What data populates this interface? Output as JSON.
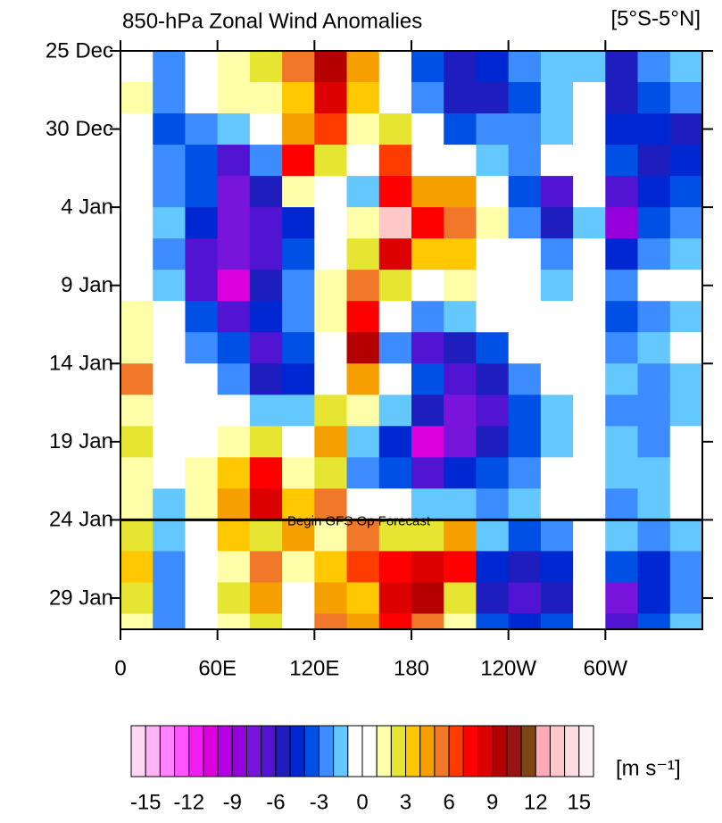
{
  "chart_data": {
    "type": "heatmap",
    "title": "850-hPa Zonal Wind Anomalies",
    "subtitle": "[5°S-5°N]",
    "x": [
      10,
      30,
      50,
      70,
      90,
      110,
      130,
      150,
      170,
      190,
      210,
      230,
      250,
      270,
      290,
      310,
      330,
      350
    ],
    "y": [
      1,
      3,
      5,
      7,
      9,
      11,
      13,
      15,
      17,
      19,
      21,
      23,
      25,
      27,
      29,
      31,
      33,
      35,
      37
    ],
    "z": [
      [
        1,
        -2,
        0,
        2,
        3,
        6,
        10,
        5,
        1,
        -3,
        -5,
        -4,
        -2,
        -1,
        -1,
        -5,
        -2,
        -1
      ],
      [
        2,
        -2,
        1,
        2,
        2,
        4,
        9,
        4,
        0,
        -2,
        -5,
        -5,
        -3,
        -1,
        0,
        -5,
        -3,
        -2
      ],
      [
        1,
        -3,
        -2,
        -1,
        0,
        5,
        7,
        2,
        3,
        0,
        -3,
        -2,
        -2,
        -1,
        0,
        -4,
        -4,
        -5
      ],
      [
        0,
        -2,
        -3,
        -6,
        -2,
        8,
        3,
        0,
        7,
        1,
        0,
        -1,
        -2,
        0,
        1,
        -3,
        -5,
        -4
      ],
      [
        0,
        -2,
        -3,
        -7,
        -5,
        2,
        0,
        -1,
        8,
        5,
        5,
        0,
        -3,
        -6,
        0,
        -6,
        -4,
        -3
      ],
      [
        1,
        -1,
        -4,
        -7,
        -6,
        -4,
        1,
        2,
        14,
        8,
        6,
        2,
        -2,
        -5,
        -1,
        -8,
        -3,
        -2
      ],
      [
        0,
        -2,
        -6,
        -7,
        -6,
        -3,
        1,
        3,
        9,
        4,
        4,
        1,
        0,
        -2,
        0,
        -4,
        -2,
        -1
      ],
      [
        1,
        -1,
        -6,
        -10,
        -5,
        -2,
        2,
        6,
        3,
        0,
        2,
        1,
        0,
        -1,
        0,
        -2,
        0,
        1
      ],
      [
        2,
        0,
        -3,
        -6,
        -4,
        -2,
        2,
        8,
        1,
        -2,
        -1,
        0,
        1,
        0,
        0,
        -3,
        -2,
        -1
      ],
      [
        2,
        0,
        -2,
        -3,
        -6,
        -3,
        1,
        10,
        -2,
        -6,
        -5,
        -3,
        0,
        1,
        0,
        -2,
        -1,
        0
      ],
      [
        6,
        1,
        0,
        -2,
        -5,
        -4,
        1,
        5,
        0,
        -3,
        -6,
        -5,
        -2,
        0,
        1,
        -1,
        -2,
        -1
      ],
      [
        2,
        0,
        1,
        0,
        -1,
        -1,
        3,
        2,
        -1,
        -5,
        -7,
        -6,
        -3,
        -1,
        0,
        -2,
        -2,
        -1
      ],
      [
        3,
        0,
        1,
        2,
        3,
        0,
        5,
        -1,
        -4,
        -10,
        -7,
        -5,
        -3,
        -1,
        0,
        -1,
        -2,
        0
      ],
      [
        2,
        1,
        2,
        4,
        8,
        2,
        3,
        -2,
        -3,
        -6,
        -4,
        -3,
        -2,
        0,
        1,
        -1,
        -1,
        1
      ],
      [
        2,
        -1,
        2,
        5,
        9,
        4,
        6,
        1,
        0,
        -1,
        -1,
        -2,
        -1,
        1,
        0,
        -2,
        -1,
        0
      ],
      [
        3,
        -1,
        1,
        4,
        3,
        5,
        2,
        6,
        3,
        3,
        5,
        -1,
        -3,
        -2,
        0,
        -1,
        -2,
        -1
      ],
      [
        4,
        -2,
        1,
        2,
        6,
        2,
        4,
        7,
        8,
        9,
        8,
        -4,
        -5,
        -4,
        0,
        -3,
        -4,
        -2
      ],
      [
        3,
        -2,
        0,
        3,
        5,
        1,
        5,
        4,
        9,
        10,
        3,
        -5,
        -6,
        -5,
        0,
        -7,
        -4,
        -2
      ],
      [
        2,
        -2,
        0,
        2,
        3,
        1,
        6,
        5,
        8,
        6,
        2,
        -3,
        -4,
        -3,
        0,
        -6,
        -3,
        -1
      ]
    ],
    "xlim": [
      0,
      360
    ],
    "ylim": [
      0,
      37
    ],
    "xticks": [
      0,
      {
        "value": 60,
        "label": "60E"
      },
      {
        "value": 120,
        "label": "120E"
      },
      180,
      {
        "value": 240,
        "label": "120W"
      },
      {
        "value": 300,
        "label": "60W"
      }
    ],
    "yticks": [
      {
        "value": 0,
        "label": "25 Dec"
      },
      {
        "value": 5,
        "label": "30 Dec"
      },
      {
        "value": 10,
        "label": "4 Jan"
      },
      {
        "value": 15,
        "label": "9 Jan"
      },
      {
        "value": 20,
        "label": "14 Jan"
      },
      {
        "value": 25,
        "label": "19 Jan"
      },
      {
        "value": 30,
        "label": "24 Jan"
      },
      {
        "value": 35,
        "label": "29 Jan"
      }
    ],
    "forecast_line": {
      "value": 30,
      "label": "Begin GFS Op Forecast"
    },
    "colorbar": {
      "label": "[m s⁻¹]",
      "levels": [
        -15,
        -14,
        -13,
        -12,
        -11,
        -10,
        -9,
        -8,
        -7,
        -6,
        -5,
        -4,
        -3,
        -2,
        -1,
        0,
        1,
        2,
        3,
        4,
        5,
        6,
        7,
        8,
        9,
        10,
        11,
        12,
        13,
        14,
        15
      ],
      "colors": [
        "#ffd7f5",
        "#ffb4f5",
        "#ff82ff",
        "#ff55ff",
        "#f01ef0",
        "#dc00dc",
        "#b400e6",
        "#9600dc",
        "#7814dc",
        "#5014d2",
        "#1e1ebe",
        "#0028d2",
        "#0050e6",
        "#3c8cff",
        "#64c8ff",
        "#ffffff",
        "#ffffff",
        "#ffffaa",
        "#e6e632",
        "#ffc800",
        "#f5a000",
        "#f07828",
        "#ff3c00",
        "#ff0000",
        "#dc0000",
        "#b40000",
        "#961414",
        "#7d4614",
        "#ffaab4",
        "#ffc8c8",
        "#ffdce1",
        "#fff0f5"
      ],
      "ticks": [
        -15,
        -12,
        -9,
        -6,
        -3,
        0,
        3,
        6,
        9,
        12,
        15
      ]
    }
  }
}
